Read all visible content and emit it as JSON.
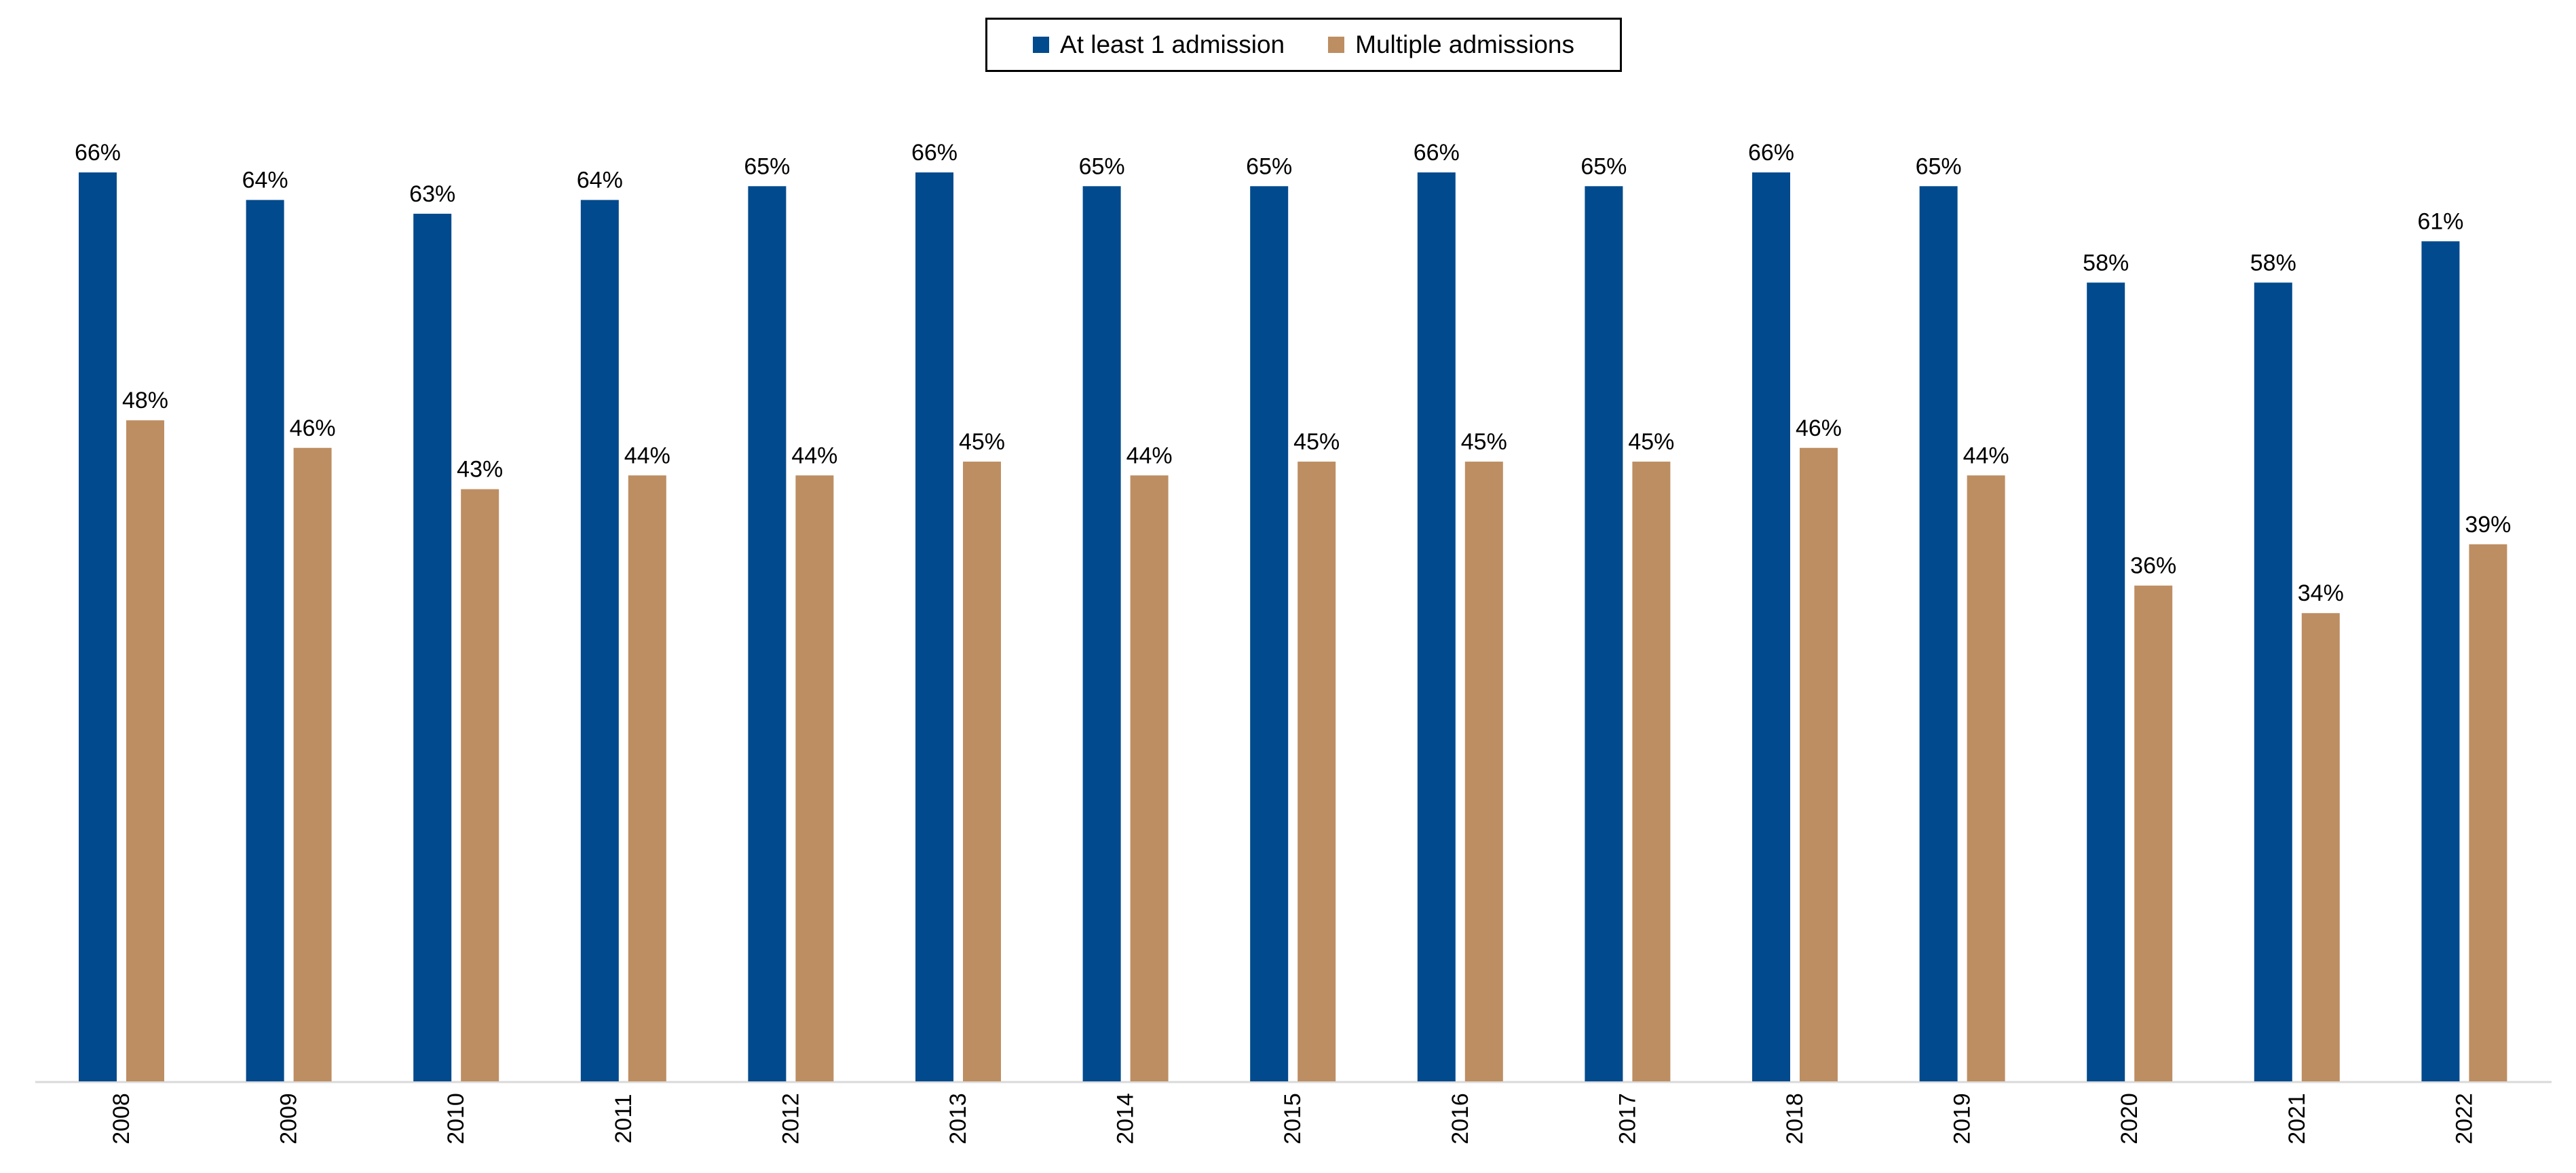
{
  "chart_data": {
    "type": "bar",
    "categories": [
      "2008",
      "2009",
      "2010",
      "2011",
      "2012",
      "2013",
      "2014",
      "2015",
      "2016",
      "2017",
      "2018",
      "2019",
      "2020",
      "2021",
      "2022"
    ],
    "series": [
      {
        "name": "At least 1 admission",
        "color": "#004A8D",
        "values": [
          66,
          64,
          63,
          64,
          65,
          66,
          65,
          65,
          66,
          65,
          66,
          65,
          58,
          58,
          61
        ],
        "labels": [
          "66%",
          "64%",
          "63%",
          "64%",
          "65%",
          "66%",
          "65%",
          "65%",
          "66%",
          "65%",
          "66%",
          "65%",
          "58%",
          "58%",
          "61%"
        ]
      },
      {
        "name": "Multiple admissions",
        "color": "#BD8E62",
        "values": [
          48,
          46,
          43,
          44,
          44,
          45,
          44,
          45,
          45,
          45,
          46,
          44,
          36,
          34,
          39
        ],
        "labels": [
          "48%",
          "46%",
          "43%",
          "44%",
          "44%",
          "45%",
          "44%",
          "45%",
          "45%",
          "45%",
          "46%",
          "44%",
          "36%",
          "34%",
          "39%"
        ]
      }
    ],
    "ylim": [
      0,
      66
    ],
    "legend_position": "top-center",
    "grid": false
  }
}
